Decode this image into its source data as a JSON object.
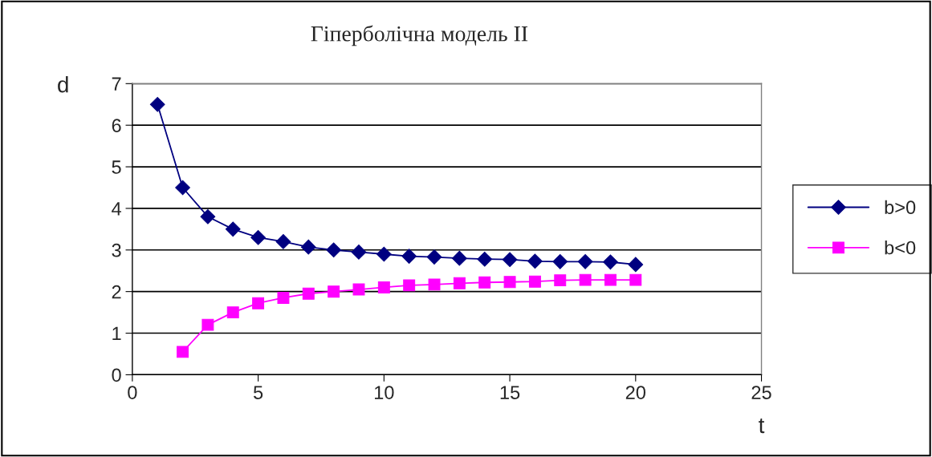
{
  "chart_data": {
    "type": "line",
    "title": "Гіперболічна модель II",
    "xlabel": "t",
    "ylabel": "d",
    "xlim": [
      0,
      25
    ],
    "xticks": [
      0,
      5,
      10,
      15,
      20,
      25
    ],
    "ylim": [
      0,
      7
    ],
    "yticks": [
      0,
      1,
      2,
      3,
      4,
      5,
      6,
      7
    ],
    "grid": "y",
    "legend": "right",
    "series": [
      {
        "name": "b>0",
        "color": "#000080",
        "marker": "diamond",
        "x": [
          1,
          2,
          3,
          4,
          5,
          6,
          7,
          8,
          9,
          10,
          11,
          12,
          13,
          14,
          15,
          16,
          17,
          18,
          19,
          20
        ],
        "values": [
          6.5,
          4.5,
          3.8,
          3.5,
          3.3,
          3.2,
          3.07,
          3.0,
          2.95,
          2.9,
          2.85,
          2.83,
          2.8,
          2.78,
          2.77,
          2.73,
          2.72,
          2.72,
          2.71,
          2.65
        ]
      },
      {
        "name": "b<0",
        "color": "#ff00ff",
        "marker": "square",
        "x": [
          2,
          3,
          4,
          5,
          6,
          7,
          8,
          9,
          10,
          11,
          12,
          13,
          14,
          15,
          16,
          17,
          18,
          19,
          20
        ],
        "values": [
          0.55,
          1.2,
          1.5,
          1.72,
          1.85,
          1.95,
          2.0,
          2.05,
          2.1,
          2.15,
          2.17,
          2.2,
          2.22,
          2.23,
          2.24,
          2.27,
          2.28,
          2.28,
          2.28
        ]
      }
    ]
  }
}
